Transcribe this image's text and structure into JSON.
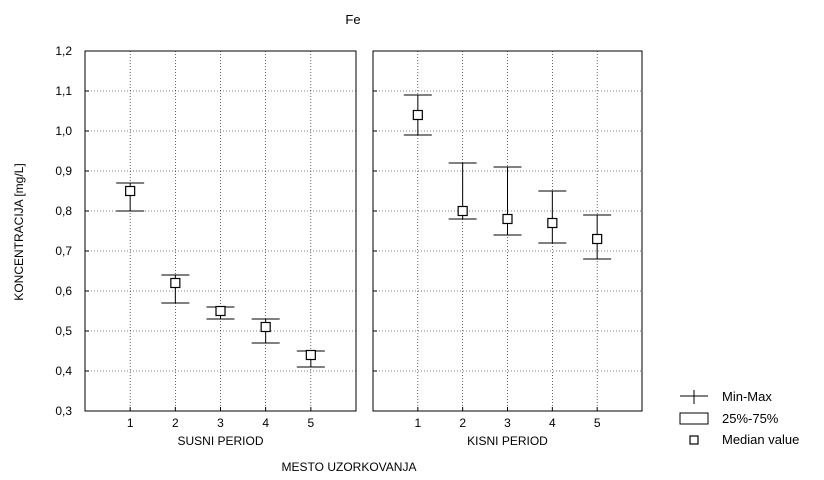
{
  "chart_data": {
    "type": "boxplot",
    "title": "Fe",
    "xlabel": "MESTO UZORKOVANJA",
    "ylabel": "KONCENTRACIJA [mg/L]",
    "ylim": [
      0.3,
      1.2
    ],
    "yticks": [
      "0,3",
      "0,4",
      "0,5",
      "0,6",
      "0,7",
      "0,8",
      "0,9",
      "1,0",
      "1,1",
      "1,2"
    ],
    "grid": true,
    "legend_position": "bottom-right",
    "legend": [
      "Min-Max",
      "25%-75%",
      "Median value"
    ],
    "panels": [
      {
        "label": "SUSNI PERIOD",
        "categories": [
          "1",
          "2",
          "3",
          "4",
          "5"
        ],
        "min": [
          0.8,
          0.57,
          0.53,
          0.47,
          0.41
        ],
        "max": [
          0.87,
          0.64,
          0.56,
          0.53,
          0.45
        ],
        "median": [
          0.85,
          0.62,
          0.55,
          0.51,
          0.44
        ]
      },
      {
        "label": "KISNI PERIOD",
        "categories": [
          "1",
          "2",
          "3",
          "4",
          "5"
        ],
        "min": [
          0.99,
          0.78,
          0.74,
          0.72,
          0.68
        ],
        "max": [
          1.09,
          0.92,
          0.91,
          0.85,
          0.79
        ],
        "median": [
          1.04,
          0.8,
          0.78,
          0.77,
          0.73
        ]
      }
    ]
  }
}
